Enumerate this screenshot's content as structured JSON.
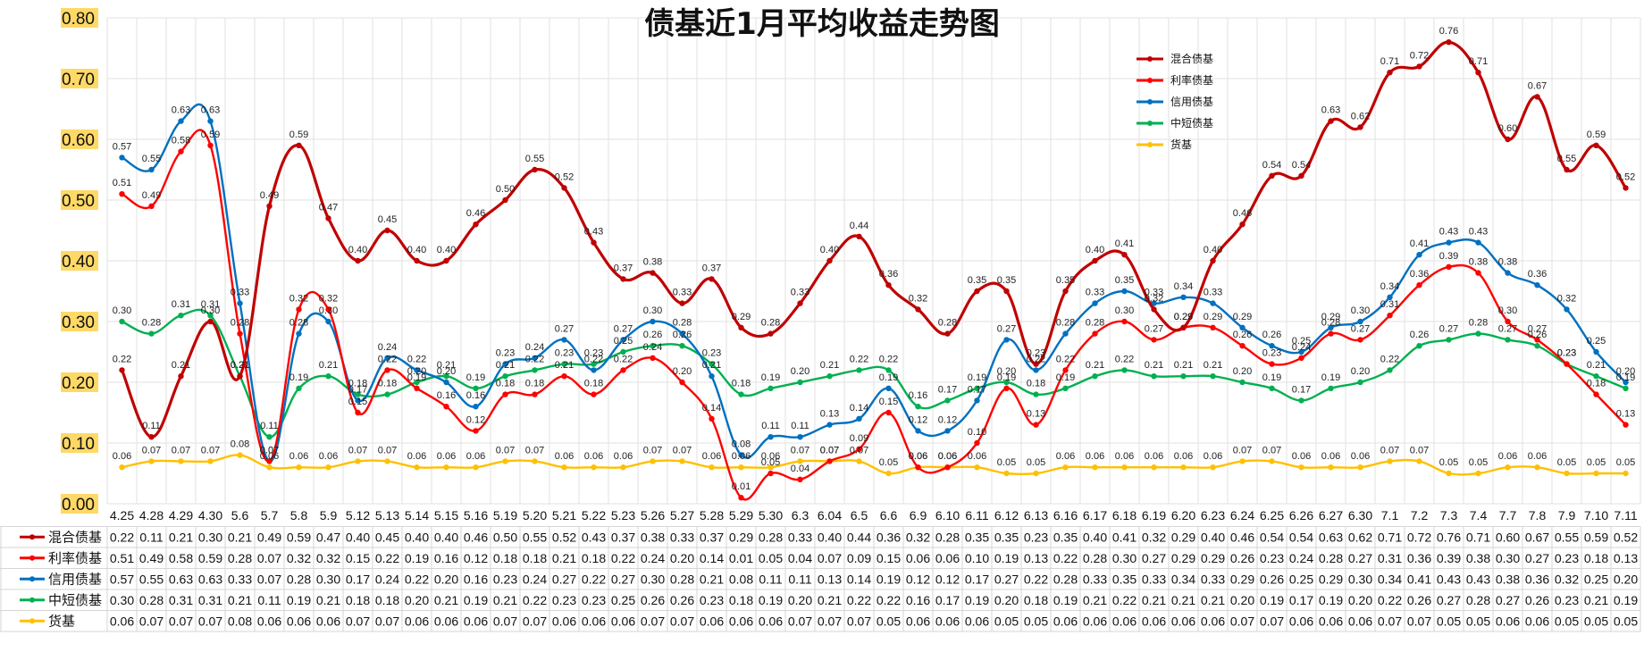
{
  "chart_data": {
    "type": "line",
    "title": "债基近1月平均收益走势图",
    "xlabel": "",
    "ylabel": "",
    "ylim": [
      0,
      0.8
    ],
    "yticks": [
      "0.00",
      "0.10",
      "0.20",
      "0.30",
      "0.40",
      "0.50",
      "0.60",
      "0.70",
      "0.80"
    ],
    "grid": true,
    "legend_position": "top-right",
    "categories": [
      "4.25",
      "4.28",
      "4.29",
      "4.30",
      "5.6",
      "5.7",
      "5.8",
      "5.9",
      "5.12",
      "5.13",
      "5.14",
      "5.15",
      "5.16",
      "5.19",
      "5.20",
      "5.21",
      "5.22",
      "5.23",
      "5.26",
      "5.27",
      "5.28",
      "5.29",
      "5.30",
      "6.3",
      "6.04",
      "6.5",
      "6.6",
      "6.9",
      "6.10",
      "6.11",
      "6.12",
      "6.13",
      "6.16",
      "6.17",
      "6.18",
      "6.19",
      "6.20",
      "6.23",
      "6.24",
      "6.25",
      "6.26",
      "6.27",
      "6.30",
      "7.1",
      "7.2",
      "7.3",
      "7.4",
      "7.7",
      "7.8",
      "7.9",
      "7.10",
      "7.11"
    ],
    "series": [
      {
        "name": "混合债基",
        "color": "#c00000",
        "values": [
          0.22,
          0.11,
          0.21,
          0.3,
          0.21,
          0.49,
          0.59,
          0.47,
          0.4,
          0.45,
          0.4,
          0.4,
          0.46,
          0.5,
          0.55,
          0.52,
          0.43,
          0.37,
          0.38,
          0.33,
          0.37,
          0.29,
          0.28,
          0.33,
          0.4,
          0.44,
          0.36,
          0.32,
          0.28,
          0.35,
          0.35,
          0.23,
          0.35,
          0.4,
          0.41,
          0.32,
          0.29,
          0.4,
          0.46,
          0.54,
          0.54,
          0.63,
          0.62,
          0.71,
          0.72,
          0.76,
          0.71,
          0.6,
          0.67,
          0.55,
          0.59,
          0.52
        ]
      },
      {
        "name": "利率债基",
        "color": "#ff0000",
        "values": [
          0.51,
          0.49,
          0.58,
          0.59,
          0.28,
          0.07,
          0.32,
          0.32,
          0.15,
          0.22,
          0.19,
          0.16,
          0.12,
          0.18,
          0.18,
          0.21,
          0.18,
          0.22,
          0.24,
          0.2,
          0.14,
          0.01,
          0.05,
          0.04,
          0.07,
          0.09,
          0.15,
          0.06,
          0.06,
          0.1,
          0.19,
          0.13,
          0.22,
          0.28,
          0.3,
          0.27,
          0.29,
          0.29,
          0.26,
          0.23,
          0.24,
          0.28,
          0.27,
          0.31,
          0.36,
          0.39,
          0.38,
          0.3,
          0.27,
          0.23,
          0.18,
          0.13
        ]
      },
      {
        "name": "信用债基",
        "color": "#0070c0",
        "values": [
          0.57,
          0.55,
          0.63,
          0.63,
          0.33,
          0.07,
          0.28,
          0.3,
          0.17,
          0.24,
          0.22,
          0.2,
          0.16,
          0.23,
          0.24,
          0.27,
          0.22,
          0.27,
          0.3,
          0.28,
          0.21,
          0.08,
          0.11,
          0.11,
          0.13,
          0.14,
          0.19,
          0.12,
          0.12,
          0.17,
          0.27,
          0.22,
          0.28,
          0.33,
          0.35,
          0.33,
          0.34,
          0.33,
          0.29,
          0.26,
          0.25,
          0.29,
          0.3,
          0.34,
          0.41,
          0.43,
          0.43,
          0.38,
          0.36,
          0.32,
          0.25,
          0.2
        ]
      },
      {
        "name": "中短债基",
        "color": "#00b050",
        "values": [
          0.3,
          0.28,
          0.31,
          0.31,
          0.21,
          0.11,
          0.19,
          0.21,
          0.18,
          0.18,
          0.2,
          0.21,
          0.19,
          0.21,
          0.22,
          0.23,
          0.23,
          0.25,
          0.26,
          0.26,
          0.23,
          0.18,
          0.19,
          0.2,
          0.21,
          0.22,
          0.22,
          0.16,
          0.17,
          0.19,
          0.2,
          0.18,
          0.19,
          0.21,
          0.22,
          0.21,
          0.21,
          0.21,
          0.2,
          0.19,
          0.17,
          0.19,
          0.2,
          0.22,
          0.26,
          0.27,
          0.28,
          0.27,
          0.26,
          0.23,
          0.21,
          0.19
        ]
      },
      {
        "name": "货基",
        "color": "#ffc000",
        "values": [
          0.06,
          0.07,
          0.07,
          0.07,
          0.08,
          0.06,
          0.06,
          0.06,
          0.07,
          0.07,
          0.06,
          0.06,
          0.06,
          0.07,
          0.07,
          0.06,
          0.06,
          0.06,
          0.07,
          0.07,
          0.06,
          0.06,
          0.06,
          0.07,
          0.07,
          0.07,
          0.05,
          0.06,
          0.06,
          0.06,
          0.05,
          0.05,
          0.06,
          0.06,
          0.06,
          0.06,
          0.06,
          0.06,
          0.07,
          0.07,
          0.06,
          0.06,
          0.06,
          0.07,
          0.07,
          0.05,
          0.05,
          0.06,
          0.06,
          0.05,
          0.05,
          0.05
        ]
      }
    ]
  }
}
